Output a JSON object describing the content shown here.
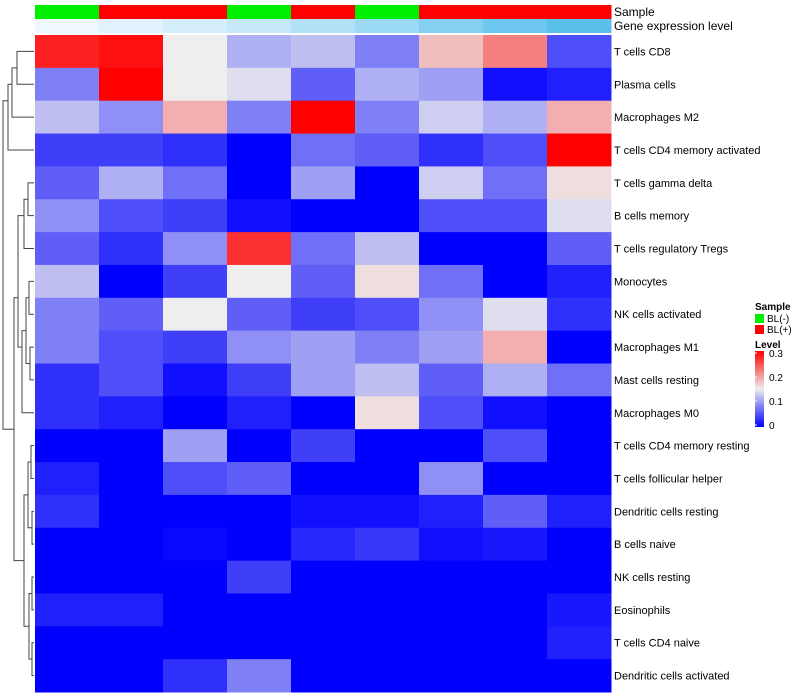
{
  "chart_data": {
    "type": "heatmap",
    "annotation_titles": {
      "sample": "Sample",
      "gene_expression": "Gene expression level"
    },
    "columns": [
      {
        "sample": "BL(-)",
        "gene_expression_level": 0.0
      },
      {
        "sample": "BL(+)",
        "gene_expression_level": 0.03
      },
      {
        "sample": "BL(+)",
        "gene_expression_level": 0.06
      },
      {
        "sample": "BL(-)",
        "gene_expression_level": 0.09
      },
      {
        "sample": "BL(+)",
        "gene_expression_level": 0.13
      },
      {
        "sample": "BL(-)",
        "gene_expression_level": 0.18
      },
      {
        "sample": "BL(+)",
        "gene_expression_level": 0.23
      },
      {
        "sample": "BL(+)",
        "gene_expression_level": 0.28
      },
      {
        "sample": "BL(+)",
        "gene_expression_level": 0.32
      }
    ],
    "rows": [
      {
        "label": "T cells CD8",
        "values": [
          0.28,
          0.29,
          0.15,
          0.11,
          0.12,
          0.08,
          0.18,
          0.22,
          0.05
        ]
      },
      {
        "label": "Plasma cells",
        "values": [
          0.08,
          0.32,
          0.15,
          0.14,
          0.06,
          0.11,
          0.1,
          0.01,
          0.02
        ]
      },
      {
        "label": "Macrophages M2",
        "values": [
          0.12,
          0.09,
          0.19,
          0.08,
          0.3,
          0.08,
          0.13,
          0.11,
          0.19
        ]
      },
      {
        "label": "T cells CD4 memory activated",
        "values": [
          0.04,
          0.04,
          0.03,
          0.0,
          0.07,
          0.06,
          0.03,
          0.05,
          0.32
        ]
      },
      {
        "label": "T cells gamma delta",
        "values": [
          0.06,
          0.11,
          0.07,
          0.0,
          0.1,
          0.0,
          0.13,
          0.07,
          0.16
        ]
      },
      {
        "label": "B cells memory",
        "values": [
          0.09,
          0.05,
          0.04,
          0.01,
          0.0,
          0.0,
          0.05,
          0.05,
          0.14
        ]
      },
      {
        "label": "T cells regulatory  Tregs",
        "values": [
          0.06,
          0.03,
          0.09,
          0.27,
          0.07,
          0.12,
          0.0,
          0.0,
          0.06
        ]
      },
      {
        "label": "Monocytes",
        "values": [
          0.12,
          0.0,
          0.04,
          0.15,
          0.06,
          0.16,
          0.07,
          0.0,
          0.02
        ]
      },
      {
        "label": "NK cells activated",
        "values": [
          0.08,
          0.06,
          0.15,
          0.06,
          0.04,
          0.05,
          0.09,
          0.14,
          0.03
        ]
      },
      {
        "label": "Macrophages M1",
        "values": [
          0.08,
          0.05,
          0.04,
          0.09,
          0.1,
          0.08,
          0.1,
          0.19,
          0.0
        ]
      },
      {
        "label": "Mast cells resting",
        "values": [
          0.03,
          0.05,
          0.01,
          0.04,
          0.1,
          0.12,
          0.06,
          0.11,
          0.07
        ]
      },
      {
        "label": "Macrophages M0",
        "values": [
          0.03,
          0.02,
          0.0,
          0.02,
          0.0,
          0.16,
          0.05,
          0.01,
          0.0
        ]
      },
      {
        "label": "T cells CD4 memory resting",
        "values": [
          0.0,
          0.0,
          0.1,
          0.0,
          0.04,
          0.0,
          0.0,
          0.05,
          0.0
        ]
      },
      {
        "label": "T cells follicular helper",
        "values": [
          0.02,
          0.0,
          0.05,
          0.06,
          0.0,
          0.0,
          0.09,
          0.0,
          0.0
        ]
      },
      {
        "label": "Dendritic cells resting",
        "values": [
          0.03,
          0.0,
          0.0,
          0.0,
          0.01,
          0.01,
          0.02,
          0.06,
          0.02
        ]
      },
      {
        "label": "B cells naive",
        "values": [
          0.0,
          0.0,
          0.005,
          0.0,
          0.025,
          0.035,
          0.01,
          0.015,
          0.0
        ]
      },
      {
        "label": "NK cells resting",
        "values": [
          0.0,
          0.0,
          0.0,
          0.04,
          0.0,
          0.0,
          0.0,
          0.0,
          0.0
        ]
      },
      {
        "label": "Eosinophils",
        "values": [
          0.02,
          0.02,
          0.0,
          0.0,
          0.0,
          0.0,
          0.0,
          0.0,
          0.015
        ]
      },
      {
        "label": "T cells CD4 naive",
        "values": [
          0.0,
          0.0,
          0.0,
          0.0,
          0.0,
          0.0,
          0.0,
          0.0,
          0.02
        ]
      },
      {
        "label": "Dendritic cells activated",
        "values": [
          0.0,
          0.0,
          0.03,
          0.08,
          0.0,
          0.0,
          0.0,
          0.0,
          0.0
        ]
      }
    ],
    "level_range": [
      0,
      0.3
    ],
    "legend": {
      "placement": "right",
      "sample_title": "Sample",
      "sample_entries": [
        "BL(-)",
        "BL(+)"
      ],
      "level_title": "Level",
      "level_ticks": [
        "0.3",
        "0.2",
        "0.1",
        "0"
      ]
    },
    "colors": {
      "low": "#0000FF",
      "mid": "#EEEEEE",
      "high": "#FF0000",
      "sample_BL_minus": "#00EE00",
      "sample_BL_plus": "#FF0000",
      "gene_expression_low": "#F0F8FF",
      "gene_expression_high": "#5BC0EB"
    },
    "row_dendrogram": true
  }
}
